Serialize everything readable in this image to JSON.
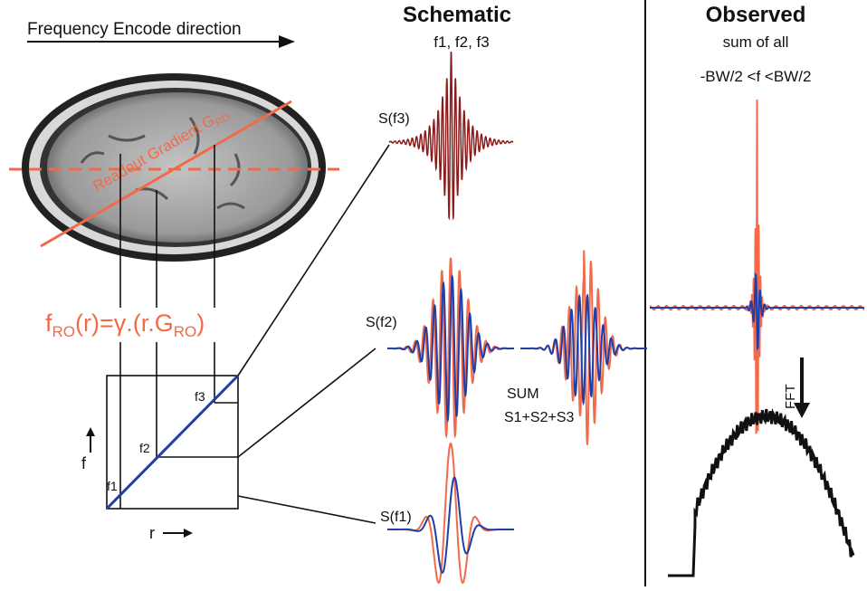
{
  "left": {
    "direction": "Frequency Encode direction",
    "gradient_label": "Readout Gradient G",
    "gradient_sub": "RO",
    "formula": {
      "f": "f",
      "sub1": "RO",
      "mid": "(r)=γ.(r.G",
      "sub2": "RO",
      "end": ")"
    },
    "box": {
      "f3": "f3",
      "f2": "f2",
      "f1": "f1",
      "f_axis": "f",
      "r_axis": "r"
    }
  },
  "schematic": {
    "title": "Schematic",
    "subtitle": "f1, f2, f3",
    "s3": "S(f3)",
    "s2": "S(f2)",
    "s1": "S(f1)",
    "sum": "SUM",
    "sum_formula": "S1+S2+S3"
  },
  "observed": {
    "title": "Observed",
    "subtitle": "sum of all",
    "range": "-BW/2 <f <BW/2",
    "fft": "FFT"
  }
}
